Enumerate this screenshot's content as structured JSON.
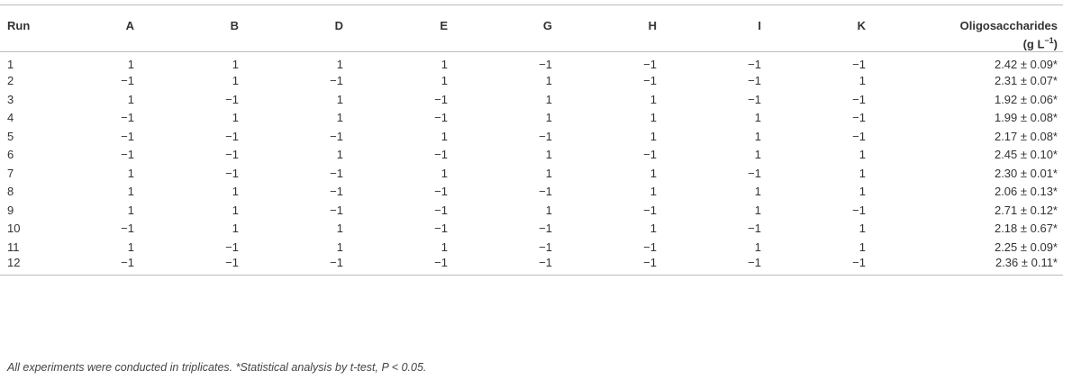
{
  "table": {
    "header": [
      "Run",
      "A",
      "B",
      "D",
      "E",
      "G",
      "H",
      "I",
      "K"
    ],
    "last_header": {
      "line1": "Oligosaccharides",
      "open": "(g L",
      "sup": "−1",
      "close": ")"
    },
    "rows": [
      [
        "1",
        "1",
        "1",
        "1",
        "1",
        "−1",
        "−1",
        "−1",
        "−1",
        "2.42 ± 0.09*"
      ],
      [
        "2",
        "−1",
        "1",
        "−1",
        "1",
        "1",
        "−1",
        "−1",
        "1",
        "2.31 ± 0.07*"
      ],
      [
        "3",
        "1",
        "−1",
        "1",
        "−1",
        "1",
        "1",
        "−1",
        "−1",
        "1.92 ± 0.06*"
      ],
      [
        "4",
        "−1",
        "1",
        "1",
        "−1",
        "1",
        "1",
        "1",
        "−1",
        "1.99 ± 0.08*"
      ],
      [
        "5",
        "−1",
        "−1",
        "−1",
        "1",
        "−1",
        "1",
        "1",
        "−1",
        "2.17 ± 0.08*"
      ],
      [
        "6",
        "−1",
        "−1",
        "1",
        "−1",
        "1",
        "−1",
        "1",
        "1",
        "2.45 ± 0.10*"
      ],
      [
        "7",
        "1",
        "−1",
        "−1",
        "1",
        "1",
        "1",
        "−1",
        "1",
        "2.30 ± 0.01*"
      ],
      [
        "8",
        "1",
        "1",
        "−1",
        "−1",
        "−1",
        "1",
        "1",
        "1",
        "2.06 ± 0.13*"
      ],
      [
        "9",
        "1",
        "1",
        "−1",
        "−1",
        "1",
        "−1",
        "1",
        "−1",
        "2.71 ± 0.12*"
      ],
      [
        "10",
        "−1",
        "1",
        "1",
        "−1",
        "−1",
        "1",
        "−1",
        "1",
        "2.18 ± 0.67*"
      ],
      [
        "11",
        "1",
        "−1",
        "1",
        "1",
        "−1",
        "−1",
        "1",
        "1",
        "2.25 ± 0.09*"
      ],
      [
        "12",
        "−1",
        "−1",
        "−1",
        "−1",
        "−1",
        "−1",
        "−1",
        "−1",
        "2.36 ± 0.11*"
      ]
    ],
    "footnote": "All experiments were conducted in triplicates. *Statistical analysis by t-test, P < 0.05."
  }
}
